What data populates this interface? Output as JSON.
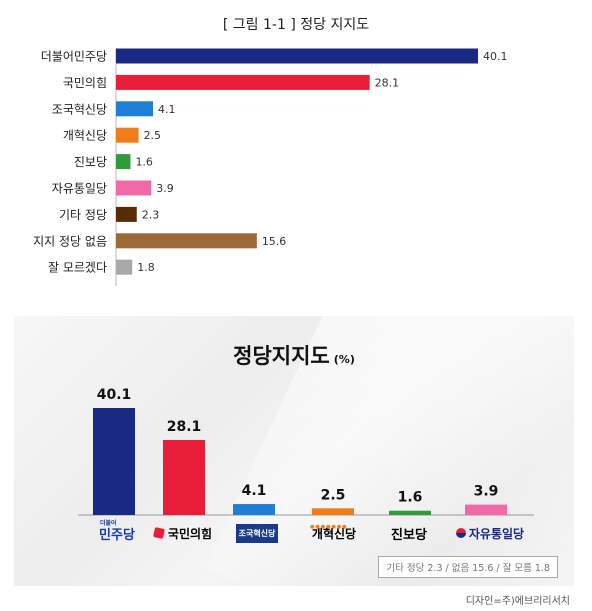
{
  "figure_title": "[ 그림 1-1 ] 정당 지지도",
  "chart_data": [
    {
      "type": "bar",
      "orientation": "horizontal",
      "categories": [
        "더불어민주당",
        "국민의힘",
        "조국혁신당",
        "개혁신당",
        "진보당",
        "자유통일당",
        "기타 정당",
        "지지 정당 없음",
        "잘 모르겠다"
      ],
      "values": [
        40.1,
        28.1,
        4.1,
        2.5,
        1.6,
        3.9,
        2.3,
        15.6,
        1.8
      ],
      "colors": [
        "#1a2a84",
        "#e81e38",
        "#1e7fd6",
        "#f07d1a",
        "#2e9c3a",
        "#f06aa8",
        "#5a2c05",
        "#9b6a35",
        "#a8a8a8"
      ],
      "grid": false,
      "legend": "none"
    },
    {
      "type": "bar",
      "orientation": "vertical",
      "title": "정당지지도",
      "unit": "(%)",
      "categories": [
        "민주당",
        "국민의힘",
        "조국혁신당",
        "개혁신당",
        "진보당",
        "자유통일당"
      ],
      "values": [
        40.1,
        28.1,
        4.1,
        2.5,
        1.6,
        3.9
      ],
      "colors": [
        "#1a2a84",
        "#e81e38",
        "#1e7fd6",
        "#f07d1a",
        "#2e9c3a",
        "#f06aa8"
      ],
      "note": "기타 정당 2.3 / 없음 15.6 / 잘 모름 1.8",
      "grid": false,
      "legend": "none"
    }
  ],
  "logos": [
    {
      "text": "민주당",
      "small": "더불어",
      "color": "#1a3aa8",
      "icon": "none"
    },
    {
      "text": "국민의힘",
      "color": "#222222",
      "accent": "#e81e38",
      "icon": "red-square"
    },
    {
      "text": "조국혁신당",
      "color": "#ffffff",
      "bg": "#1a3a8a",
      "icon": "none"
    },
    {
      "text": "개혁신당",
      "color": "#111111",
      "accent": "#f07d1a",
      "icon": "orange-dots"
    },
    {
      "text": "진보당",
      "color": "#222222",
      "icon": "none"
    },
    {
      "text": "자유통일당",
      "color": "#1a2a84",
      "accent": "#e81e38",
      "icon": "taegeuk-circle"
    }
  ],
  "credit": "디자인=주)에브리리서치"
}
